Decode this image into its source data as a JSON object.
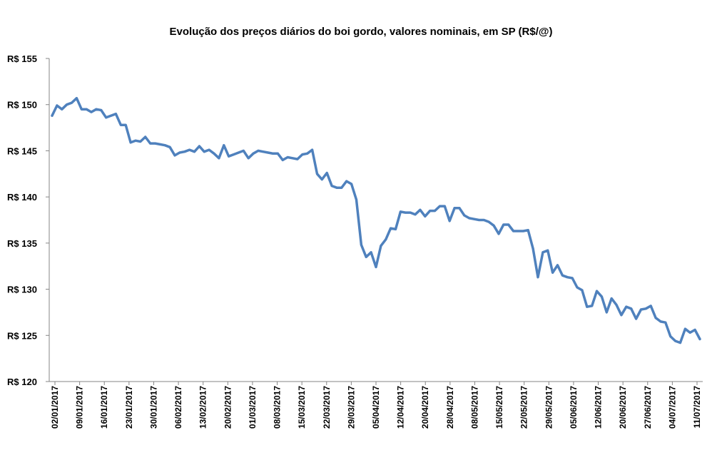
{
  "chart_data": {
    "type": "line",
    "title": "Evolução dos preços diários do boi gordo, valores nominais, em SP (R$/@)",
    "xlabel": "",
    "ylabel": "",
    "ylim": [
      120,
      155
    ],
    "y_ticks": [
      120,
      125,
      130,
      135,
      140,
      145,
      150,
      155
    ],
    "y_tick_prefix": "R$ ",
    "x_tick_labels": [
      "02/01/2017",
      "09/01/2017",
      "16/01/2017",
      "23/01/2017",
      "30/01/2017",
      "06/02/2017",
      "13/02/2017",
      "20/02/2017",
      "01/03/2017",
      "08/03/2017",
      "15/03/2017",
      "22/03/2017",
      "29/03/2017",
      "05/04/2017",
      "12/04/2017",
      "20/04/2017",
      "28/04/2017",
      "08/05/2017",
      "15/05/2017",
      "22/05/2017",
      "29/05/2017",
      "05/06/2017",
      "12/06/2017",
      "20/06/2017",
      "27/06/2017",
      "04/07/2017",
      "11/07/2017"
    ],
    "grid": false,
    "legend": "none",
    "line_color": "#4F81BD",
    "series": [
      {
        "values": [
          148.8,
          149.9,
          149.5,
          150.0,
          150.2,
          150.7,
          149.5,
          149.5,
          149.2,
          149.5,
          149.4,
          148.6,
          148.8,
          149.0,
          147.8,
          147.8,
          145.9,
          146.1,
          146.0,
          146.5,
          145.8,
          145.8,
          145.7,
          145.6,
          145.4,
          144.5,
          144.8,
          144.9,
          145.1,
          144.9,
          145.5,
          144.9,
          145.1,
          144.7,
          144.2,
          145.6,
          144.4,
          144.6,
          144.8,
          145.0,
          144.2,
          144.7,
          145.0,
          144.9,
          144.8,
          144.7,
          144.7,
          144.0,
          144.3,
          144.2,
          144.1,
          144.6,
          144.7,
          145.1,
          142.5,
          141.9,
          142.6,
          141.2,
          141.0,
          141.0,
          141.7,
          141.4,
          139.7,
          134.8,
          133.5,
          134.0,
          132.4,
          134.7,
          135.4,
          136.6,
          136.5,
          138.4,
          138.3,
          138.3,
          138.1,
          138.6,
          137.9,
          138.5,
          138.5,
          139.0,
          139.0,
          137.4,
          138.8,
          138.8,
          138.0,
          137.7,
          137.6,
          137.5,
          137.5,
          137.3,
          136.9,
          136.0,
          137.0,
          137.0,
          136.3,
          136.3,
          136.3,
          136.4,
          134.4,
          131.3,
          134.0,
          134.2,
          131.8,
          132.6,
          131.5,
          131.3,
          131.2,
          130.2,
          129.9,
          128.1,
          128.2,
          129.8,
          129.2,
          127.5,
          129.0,
          128.3,
          127.2,
          128.1,
          127.9,
          126.8,
          127.8,
          127.9,
          128.2,
          126.9,
          126.5,
          126.4,
          124.9,
          124.4,
          124.2,
          125.7,
          125.3,
          125.6,
          124.6
        ]
      }
    ]
  }
}
